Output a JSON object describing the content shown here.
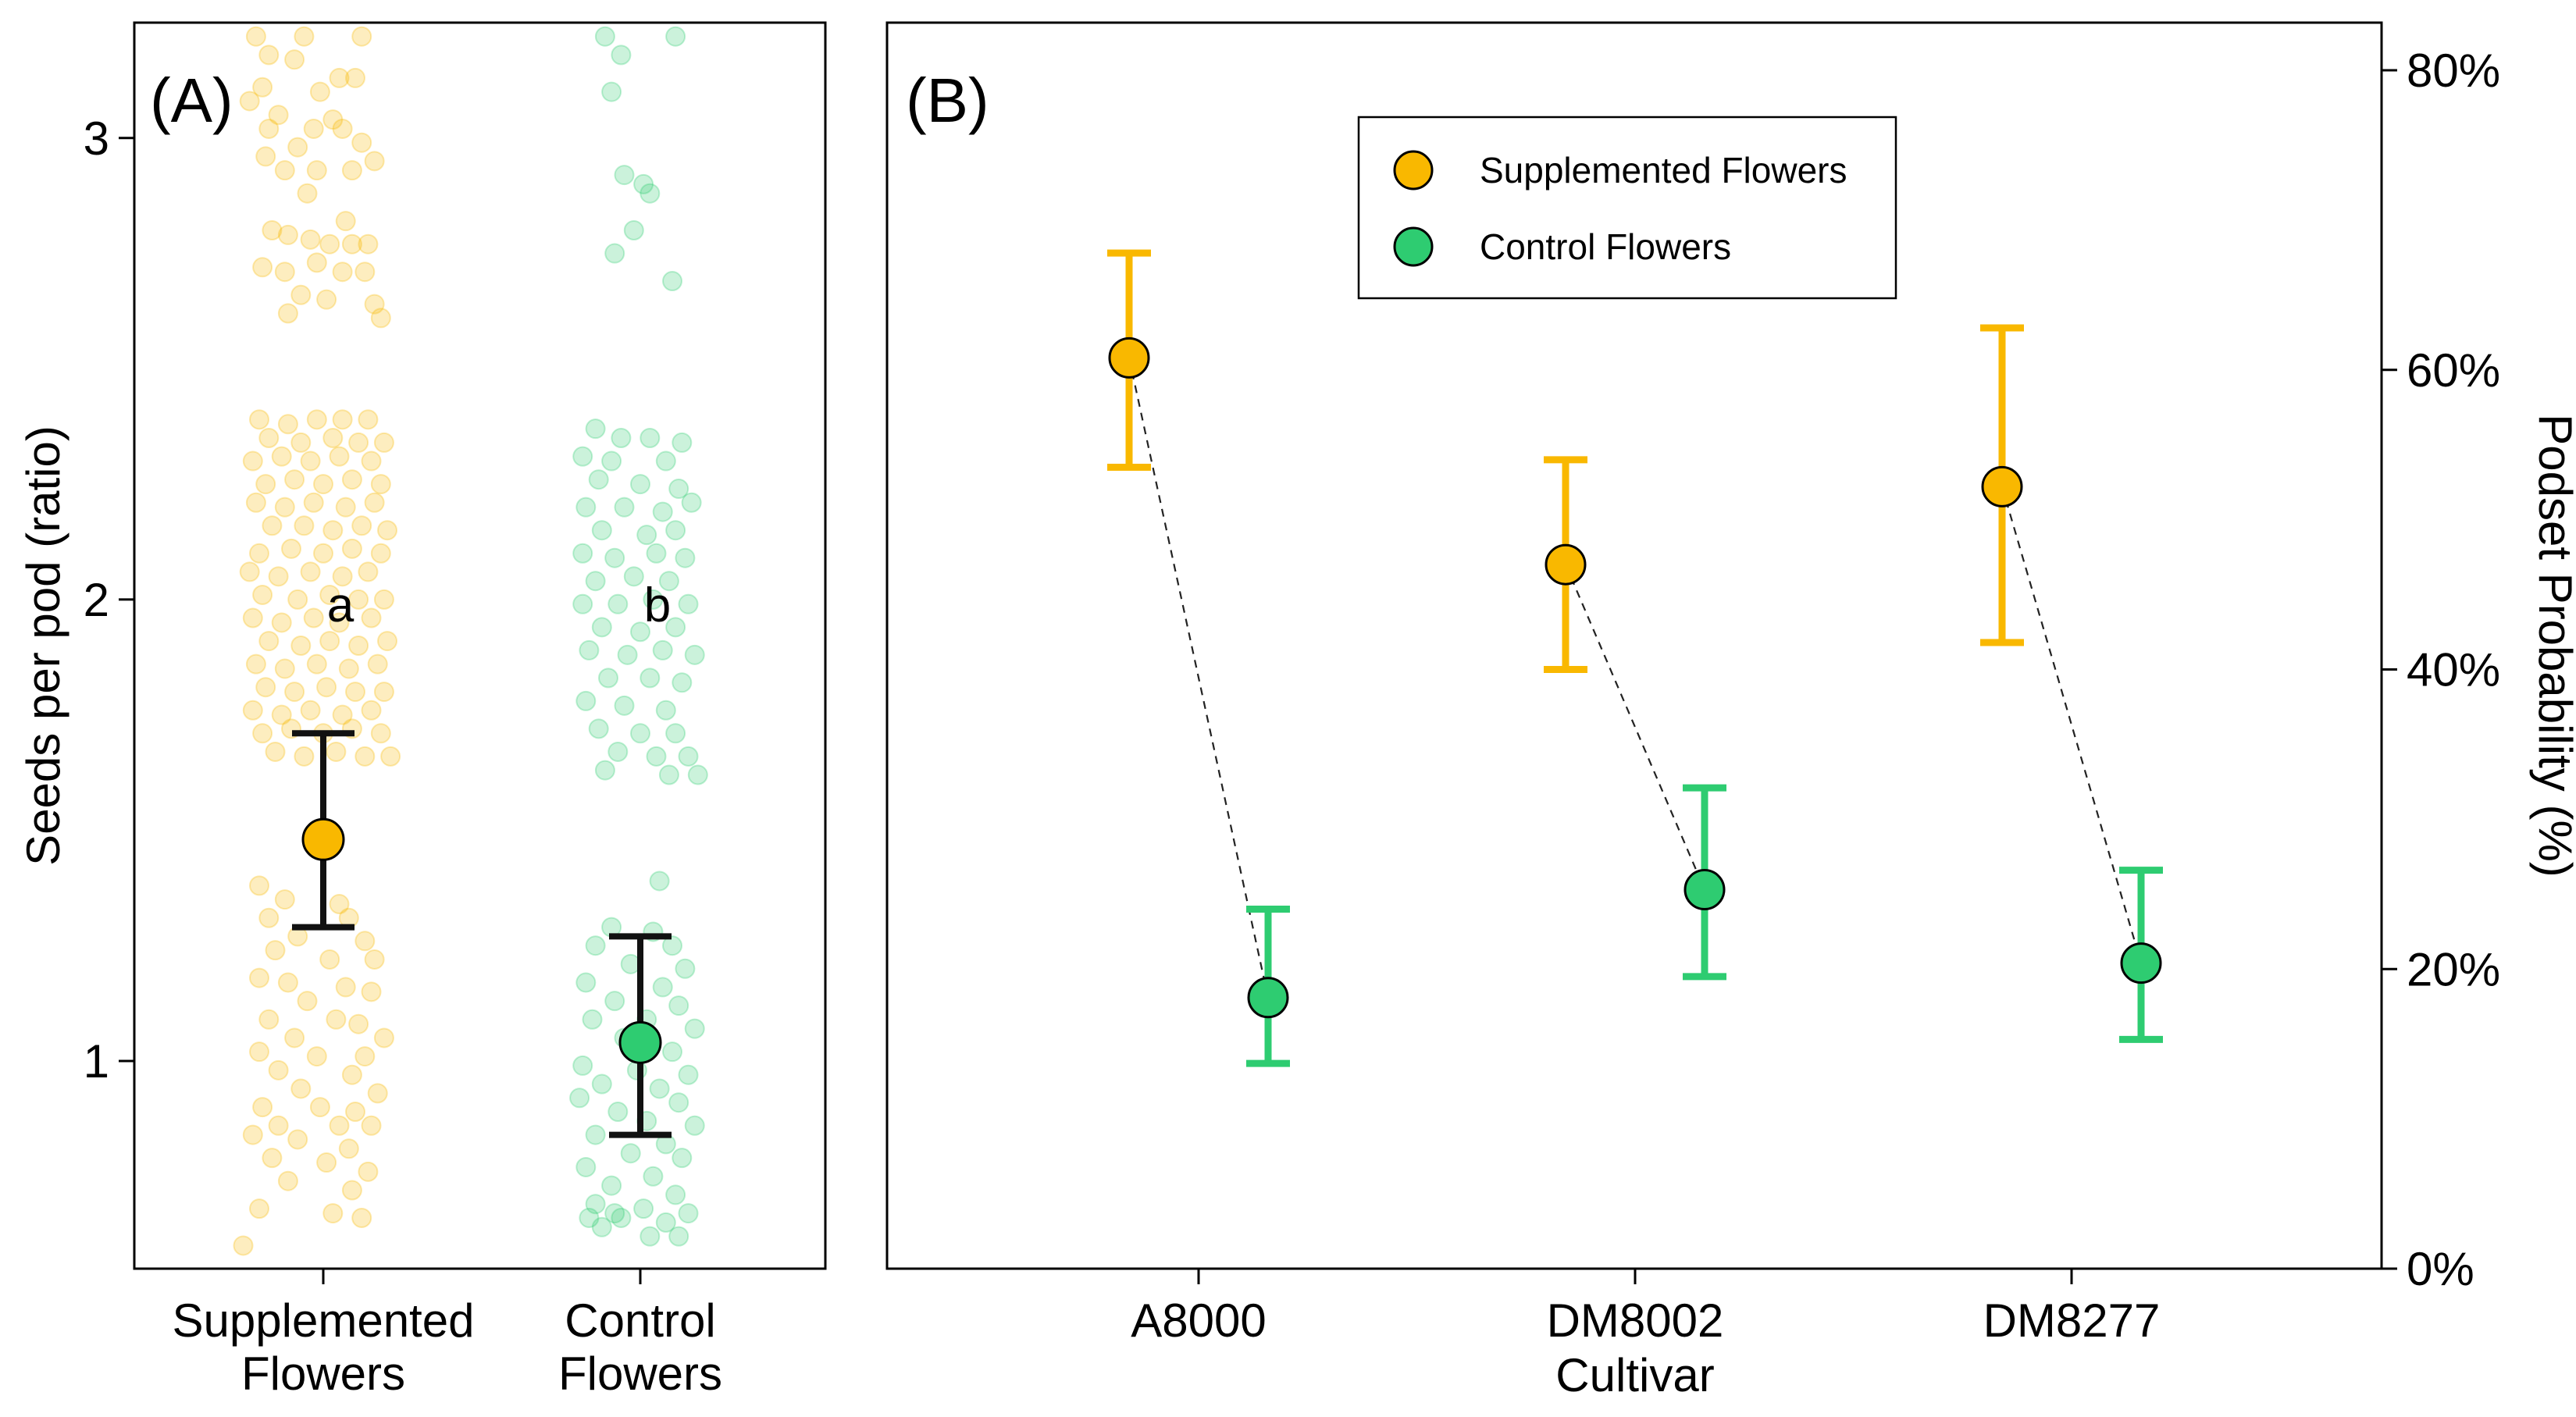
{
  "colors": {
    "supplemented": "#F9B800",
    "control": "#2ECC71",
    "errorbar_a": "#111111"
  },
  "chart_data": [
    {
      "type": "scatter",
      "panel_label": "(A)",
      "ylabel": "Seeds per pod (ratio)",
      "xlabel": "",
      "ylim": [
        0.55,
        3.25
      ],
      "yticks": [
        1,
        2,
        3
      ],
      "ytick_labels": [
        "1",
        "2",
        "3"
      ],
      "categories": [
        {
          "id": "supp",
          "label_line1": "Supplemented",
          "label_line2": "Flowers"
        },
        {
          "id": "ctrl",
          "label_line1": "Control",
          "label_line2": "Flowers"
        }
      ],
      "series": [
        {
          "name": "Supplemented Flowers",
          "mean": 1.48,
          "lower": 1.29,
          "upper": 1.71,
          "letter": "a",
          "letter_y": 1.99
        },
        {
          "name": "Control Flowers",
          "mean": 1.04,
          "lower": 0.84,
          "upper": 1.27,
          "letter": "b",
          "letter_y": 1.99
        }
      ],
      "points_supplemented": [
        [
          -0.21,
          3.22
        ],
        [
          -0.06,
          3.22
        ],
        [
          0.12,
          3.22
        ],
        [
          -0.17,
          3.18
        ],
        [
          -0.09,
          3.17
        ],
        [
          0.05,
          3.13
        ],
        [
          -0.19,
          3.11
        ],
        [
          -0.01,
          3.1
        ],
        [
          0.1,
          3.13
        ],
        [
          -0.23,
          3.08
        ],
        [
          -0.14,
          3.05
        ],
        [
          0.03,
          3.04
        ],
        [
          -0.17,
          3.02
        ],
        [
          -0.03,
          3.02
        ],
        [
          0.06,
          3.02
        ],
        [
          0.12,
          2.99
        ],
        [
          -0.08,
          2.98
        ],
        [
          0.16,
          2.95
        ],
        [
          -0.18,
          2.96
        ],
        [
          -0.12,
          2.93
        ],
        [
          -0.02,
          2.93
        ],
        [
          0.09,
          2.93
        ],
        [
          -0.05,
          2.88
        ],
        [
          0.07,
          2.82
        ],
        [
          -0.16,
          2.8
        ],
        [
          -0.11,
          2.79
        ],
        [
          -0.04,
          2.78
        ],
        [
          0.02,
          2.77
        ],
        [
          0.09,
          2.77
        ],
        [
          0.14,
          2.77
        ],
        [
          -0.19,
          2.72
        ],
        [
          -0.12,
          2.71
        ],
        [
          -0.02,
          2.73
        ],
        [
          0.06,
          2.71
        ],
        [
          0.13,
          2.71
        ],
        [
          -0.07,
          2.66
        ],
        [
          0.01,
          2.65
        ],
        [
          0.16,
          2.64
        ],
        [
          -0.11,
          2.62
        ],
        [
          0.18,
          2.61
        ],
        [
          -0.2,
          2.39
        ],
        [
          -0.11,
          2.38
        ],
        [
          -0.02,
          2.39
        ],
        [
          0.06,
          2.39
        ],
        [
          0.14,
          2.39
        ],
        [
          -0.17,
          2.35
        ],
        [
          -0.07,
          2.34
        ],
        [
          0.03,
          2.35
        ],
        [
          0.11,
          2.34
        ],
        [
          0.19,
          2.34
        ],
        [
          -0.22,
          2.3
        ],
        [
          -0.13,
          2.31
        ],
        [
          -0.04,
          2.3
        ],
        [
          0.05,
          2.31
        ],
        [
          0.15,
          2.3
        ],
        [
          -0.18,
          2.25
        ],
        [
          -0.09,
          2.26
        ],
        [
          0.0,
          2.25
        ],
        [
          0.09,
          2.26
        ],
        [
          0.18,
          2.25
        ],
        [
          -0.21,
          2.21
        ],
        [
          -0.12,
          2.2
        ],
        [
          -0.03,
          2.21
        ],
        [
          0.07,
          2.2
        ],
        [
          0.16,
          2.21
        ],
        [
          -0.16,
          2.16
        ],
        [
          -0.06,
          2.16
        ],
        [
          0.03,
          2.15
        ],
        [
          0.12,
          2.16
        ],
        [
          0.2,
          2.15
        ],
        [
          -0.2,
          2.1
        ],
        [
          -0.1,
          2.11
        ],
        [
          0.0,
          2.1
        ],
        [
          0.09,
          2.11
        ],
        [
          0.18,
          2.1
        ],
        [
          -0.23,
          2.06
        ],
        [
          -0.14,
          2.05
        ],
        [
          -0.04,
          2.06
        ],
        [
          0.06,
          2.05
        ],
        [
          0.14,
          2.06
        ],
        [
          -0.19,
          2.01
        ],
        [
          -0.08,
          2.0
        ],
        [
          0.02,
          2.01
        ],
        [
          0.11,
          2.0
        ],
        [
          0.19,
          2.0
        ],
        [
          -0.22,
          1.96
        ],
        [
          -0.13,
          1.95
        ],
        [
          -0.03,
          1.96
        ],
        [
          0.05,
          1.95
        ],
        [
          0.15,
          1.96
        ],
        [
          -0.17,
          1.91
        ],
        [
          -0.07,
          1.9
        ],
        [
          0.02,
          1.91
        ],
        [
          0.11,
          1.9
        ],
        [
          0.2,
          1.91
        ],
        [
          -0.21,
          1.86
        ],
        [
          -0.12,
          1.85
        ],
        [
          -0.02,
          1.86
        ],
        [
          0.08,
          1.85
        ],
        [
          0.17,
          1.86
        ],
        [
          -0.18,
          1.81
        ],
        [
          -0.09,
          1.8
        ],
        [
          0.01,
          1.81
        ],
        [
          0.1,
          1.8
        ],
        [
          0.19,
          1.8
        ],
        [
          -0.22,
          1.76
        ],
        [
          -0.13,
          1.75
        ],
        [
          -0.04,
          1.76
        ],
        [
          0.06,
          1.75
        ],
        [
          0.15,
          1.76
        ],
        [
          -0.19,
          1.71
        ],
        [
          -0.1,
          1.72
        ],
        [
          0.0,
          1.71
        ],
        [
          0.09,
          1.72
        ],
        [
          0.18,
          1.71
        ],
        [
          -0.15,
          1.67
        ],
        [
          -0.06,
          1.66
        ],
        [
          0.04,
          1.67
        ],
        [
          0.13,
          1.66
        ],
        [
          0.21,
          1.66
        ],
        [
          -0.2,
          1.38
        ],
        [
          -0.12,
          1.35
        ],
        [
          0.05,
          1.34
        ],
        [
          -0.17,
          1.31
        ],
        [
          0.08,
          1.31
        ],
        [
          -0.08,
          1.27
        ],
        [
          0.13,
          1.26
        ],
        [
          -0.15,
          1.24
        ],
        [
          0.02,
          1.22
        ],
        [
          0.16,
          1.22
        ],
        [
          -0.2,
          1.18
        ],
        [
          -0.11,
          1.17
        ],
        [
          0.07,
          1.16
        ],
        [
          0.15,
          1.15
        ],
        [
          -0.05,
          1.13
        ],
        [
          -0.17,
          1.09
        ],
        [
          0.04,
          1.09
        ],
        [
          0.11,
          1.08
        ],
        [
          -0.09,
          1.05
        ],
        [
          0.19,
          1.05
        ],
        [
          -0.2,
          1.02
        ],
        [
          -0.02,
          1.01
        ],
        [
          0.13,
          1.01
        ],
        [
          -0.14,
          0.98
        ],
        [
          0.09,
          0.97
        ],
        [
          -0.07,
          0.94
        ],
        [
          0.17,
          0.93
        ],
        [
          -0.19,
          0.9
        ],
        [
          -0.01,
          0.9
        ],
        [
          0.1,
          0.89
        ],
        [
          -0.14,
          0.86
        ],
        [
          0.05,
          0.86
        ],
        [
          0.15,
          0.86
        ],
        [
          -0.22,
          0.84
        ],
        [
          -0.08,
          0.83
        ],
        [
          0.08,
          0.81
        ],
        [
          -0.16,
          0.79
        ],
        [
          0.01,
          0.78
        ],
        [
          0.14,
          0.76
        ],
        [
          -0.11,
          0.74
        ],
        [
          0.09,
          0.72
        ],
        [
          -0.2,
          0.68
        ],
        [
          0.03,
          0.67
        ],
        [
          0.12,
          0.66
        ],
        [
          -0.25,
          0.6
        ]
      ],
      "points_control": [
        [
          -0.11,
          3.22
        ],
        [
          0.11,
          3.22
        ],
        [
          -0.06,
          3.18
        ],
        [
          -0.09,
          3.1
        ],
        [
          -0.05,
          2.92
        ],
        [
          0.01,
          2.9
        ],
        [
          0.03,
          2.88
        ],
        [
          -0.02,
          2.8
        ],
        [
          -0.08,
          2.75
        ],
        [
          0.1,
          2.69
        ],
        [
          -0.14,
          2.37
        ],
        [
          -0.06,
          2.35
        ],
        [
          0.03,
          2.35
        ],
        [
          0.13,
          2.34
        ],
        [
          -0.18,
          2.31
        ],
        [
          -0.09,
          2.3
        ],
        [
          0.08,
          2.3
        ],
        [
          -0.13,
          2.26
        ],
        [
          0.0,
          2.25
        ],
        [
          0.12,
          2.24
        ],
        [
          -0.17,
          2.2
        ],
        [
          -0.05,
          2.2
        ],
        [
          0.07,
          2.19
        ],
        [
          0.16,
          2.21
        ],
        [
          -0.12,
          2.15
        ],
        [
          0.02,
          2.14
        ],
        [
          0.11,
          2.15
        ],
        [
          -0.18,
          2.1
        ],
        [
          -0.08,
          2.09
        ],
        [
          0.05,
          2.1
        ],
        [
          0.14,
          2.09
        ],
        [
          -0.14,
          2.04
        ],
        [
          -0.02,
          2.05
        ],
        [
          0.09,
          2.04
        ],
        [
          -0.18,
          1.99
        ],
        [
          -0.07,
          1.99
        ],
        [
          0.04,
          2.0
        ],
        [
          0.15,
          1.99
        ],
        [
          -0.12,
          1.94
        ],
        [
          0.0,
          1.93
        ],
        [
          0.11,
          1.94
        ],
        [
          -0.16,
          1.89
        ],
        [
          -0.04,
          1.88
        ],
        [
          0.07,
          1.89
        ],
        [
          0.17,
          1.88
        ],
        [
          -0.1,
          1.83
        ],
        [
          0.03,
          1.83
        ],
        [
          0.13,
          1.82
        ],
        [
          -0.17,
          1.78
        ],
        [
          -0.05,
          1.77
        ],
        [
          0.08,
          1.76
        ],
        [
          -0.13,
          1.72
        ],
        [
          0.0,
          1.71
        ],
        [
          0.11,
          1.71
        ],
        [
          -0.07,
          1.67
        ],
        [
          0.05,
          1.66
        ],
        [
          0.15,
          1.66
        ],
        [
          -0.11,
          1.63
        ],
        [
          0.09,
          1.62
        ],
        [
          0.18,
          1.62
        ],
        [
          0.06,
          1.39
        ],
        [
          -0.09,
          1.29
        ],
        [
          0.04,
          1.28
        ],
        [
          -0.14,
          1.25
        ],
        [
          0.1,
          1.25
        ],
        [
          -0.03,
          1.21
        ],
        [
          0.14,
          1.2
        ],
        [
          -0.17,
          1.17
        ],
        [
          0.07,
          1.16
        ],
        [
          -0.08,
          1.13
        ],
        [
          0.12,
          1.12
        ],
        [
          -0.15,
          1.09
        ],
        [
          0.02,
          1.09
        ],
        [
          0.17,
          1.07
        ],
        [
          -0.05,
          1.05
        ],
        [
          0.1,
          1.02
        ],
        [
          -0.18,
          0.99
        ],
        [
          -0.01,
          0.98
        ],
        [
          0.15,
          0.97
        ],
        [
          -0.12,
          0.95
        ],
        [
          0.06,
          0.94
        ],
        [
          -0.19,
          0.92
        ],
        [
          0.12,
          0.91
        ],
        [
          -0.07,
          0.89
        ],
        [
          0.02,
          0.87
        ],
        [
          0.17,
          0.86
        ],
        [
          -0.14,
          0.84
        ],
        [
          0.08,
          0.82
        ],
        [
          -0.03,
          0.8
        ],
        [
          0.13,
          0.79
        ],
        [
          -0.17,
          0.77
        ],
        [
          0.04,
          0.75
        ],
        [
          -0.09,
          0.73
        ],
        [
          0.11,
          0.71
        ],
        [
          -0.14,
          0.69
        ],
        [
          0.01,
          0.68
        ],
        [
          0.15,
          0.67
        ],
        [
          -0.06,
          0.66
        ],
        [
          0.08,
          0.65
        ],
        [
          -0.12,
          0.64
        ],
        [
          0.03,
          0.62
        ],
        [
          -0.16,
          0.66
        ],
        [
          0.12,
          0.62
        ],
        [
          -0.08,
          0.67
        ]
      ]
    },
    {
      "type": "scatter",
      "panel_label": "(B)",
      "xlabel": "Cultivar",
      "ylabel": "Podset Probability (%)",
      "yaxis_side": "right",
      "ylim": [
        0,
        80
      ],
      "yticks": [
        0,
        20,
        40,
        60,
        80
      ],
      "ytick_labels": [
        "0%",
        "20%",
        "40%",
        "60%",
        "80%"
      ],
      "categories": [
        "A8000",
        "DM8002",
        "DM8277"
      ],
      "legend": {
        "position": "top-center",
        "entries": [
          "Supplemented Flowers",
          "Control Flowers"
        ]
      },
      "series": [
        {
          "name": "Supplemented Flowers",
          "values": [
            60.8,
            47.0,
            52.2
          ],
          "lower": [
            53.5,
            40.0,
            41.8
          ],
          "upper": [
            67.8,
            54.0,
            62.8
          ]
        },
        {
          "name": "Control Flowers",
          "values": [
            18.1,
            25.3,
            20.4
          ],
          "lower": [
            13.7,
            19.5,
            15.3
          ],
          "upper": [
            24.0,
            32.1,
            26.6
          ]
        }
      ]
    }
  ]
}
